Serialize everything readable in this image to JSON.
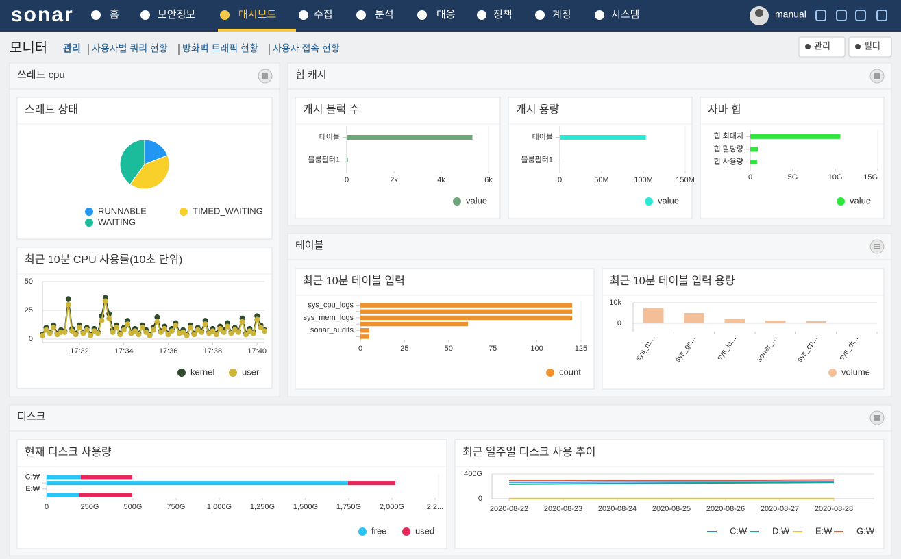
{
  "nav": {
    "logo": "sonar",
    "menu": [
      "홈",
      "보안정보",
      "대시보드",
      "수집",
      "분석",
      "대응",
      "정책",
      "계정",
      "시스템"
    ],
    "active": 2,
    "user": "manual"
  },
  "header": {
    "title": "모니터",
    "links": [
      "관리",
      "사용자별 쿼리 현황",
      "방화벽 트래픽 현황",
      "사용자 접속 현황"
    ],
    "buttons": [
      "관리",
      "필터"
    ]
  },
  "panels": [
    {
      "title": "쓰레드 cpu",
      "widgets": [
        {
          "title": "스레드 상태",
          "type": "pie",
          "categories": [
            "RUNNABLE",
            "TIMED_WAITING",
            "WAITING"
          ],
          "values": [
            19,
            41,
            40
          ],
          "colors": [
            "#2196f3",
            "#f9cf2a",
            "#1abc9c"
          ]
        },
        {
          "title": "최근 10분 CPU 사용률(10초 단위)",
          "type": "line",
          "markers": true,
          "grid": true,
          "categories": [
            null,
            null,
            null,
            null,
            null,
            null,
            null,
            null,
            null,
            null,
            "17:32",
            null,
            null,
            null,
            null,
            null,
            null,
            null,
            null,
            null,
            null,
            null,
            "17:34",
            null,
            null,
            null,
            null,
            null,
            null,
            null,
            null,
            null,
            null,
            null,
            "17:36",
            null,
            null,
            null,
            null,
            null,
            null,
            null,
            null,
            null,
            null,
            null,
            "17:38",
            null,
            null,
            null,
            null,
            null,
            null,
            null,
            null,
            null,
            null,
            null,
            "17:40",
            null,
            null
          ],
          "ylim": [
            -3,
            50
          ],
          "yticks": [
            0,
            25,
            50
          ],
          "series": [
            {
              "name": "kernel",
              "color": "#2f4a2c",
              "values": [
                4,
                10,
                6,
                12,
                5,
                8,
                7,
                35,
                9,
                5,
                12,
                6,
                10,
                4,
                9,
                6,
                20,
                36,
                22,
                8,
                12,
                5,
                10,
                16,
                6,
                9,
                5,
                12,
                8,
                4,
                10,
                19,
                7,
                11,
                5,
                9,
                14,
                6,
                8,
                4,
                12,
                5,
                10,
                7,
                16,
                6,
                9,
                5,
                11,
                8,
                14,
                6,
                10,
                7,
                18,
                5,
                9,
                6,
                20,
                12,
                8
              ]
            },
            {
              "name": "user",
              "color": "#cdb53a",
              "values": [
                3,
                8,
                5,
                10,
                4,
                6,
                6,
                30,
                7,
                4,
                10,
                5,
                8,
                3,
                7,
                5,
                16,
                33,
                18,
                6,
                10,
                4,
                8,
                13,
                5,
                7,
                4,
                10,
                6,
                3,
                8,
                15,
                6,
                9,
                4,
                7,
                12,
                5,
                6,
                3,
                10,
                4,
                8,
                6,
                13,
                5,
                7,
                4,
                9,
                6,
                11,
                5,
                8,
                6,
                15,
                4,
                7,
                5,
                17,
                10,
                7
              ]
            }
          ]
        }
      ]
    },
    {
      "title": "힙 캐시",
      "widgets": [
        {
          "title": "캐시 블럭 수",
          "type": "hbar",
          "categories": [
            "테이블",
            "블룸필터1"
          ],
          "series": [
            {
              "name": "value",
              "color": "#6fa77a",
              "values": [
                5320,
                50
              ]
            }
          ],
          "xlim": [
            0,
            6000
          ],
          "xticks": [
            0,
            {
              "value": 2000,
              "label": "2k"
            },
            {
              "value": 4000,
              "label": "4k"
            },
            {
              "value": 6000,
              "label": "6k"
            }
          ]
        },
        {
          "title": "캐시 용량",
          "type": "hbar",
          "categories": [
            "테이블",
            "블룸필터1"
          ],
          "series": [
            {
              "name": "value",
              "color": "#2ee8d6",
              "values": [
                103,
                0
              ]
            }
          ],
          "xlim": [
            0,
            150
          ],
          "xticks": [
            0,
            {
              "value": 50,
              "label": "50M"
            },
            {
              "value": 100,
              "label": "100M"
            },
            {
              "value": 150,
              "label": "150M"
            }
          ]
        },
        {
          "title": "자바 힙",
          "type": "hbar",
          "categories": [
            "힙 최대치",
            "힙 할당량",
            "힙 사용량"
          ],
          "series": [
            {
              "name": "value",
              "color": "#2ee83c",
              "values": [
                10.6,
                0.9,
                0.8
              ]
            }
          ],
          "xlim": [
            0,
            15
          ],
          "xticks": [
            0,
            {
              "value": 5,
              "label": "5G"
            },
            {
              "value": 10,
              "label": "10G"
            },
            {
              "value": 15,
              "label": "15G"
            }
          ]
        }
      ]
    },
    {
      "title": "테이블",
      "widgets": [
        {
          "title": "최근 10분 테이블 입력",
          "type": "hbar",
          "categories": [
            "sys_cpu_logs",
            null,
            "sys_mem_logs",
            null,
            "sonar_audits",
            null
          ],
          "series": [
            {
              "name": "count",
              "color": "#f0922b",
              "values": [
                120,
                120,
                120,
                61,
                5,
                5
              ]
            }
          ],
          "xlim": [
            0,
            125
          ],
          "xticks": [
            0,
            25,
            50,
            75,
            100,
            125
          ]
        },
        {
          "title": "최근 10분 테이블 입력 용량",
          "type": "vbar",
          "grid": true,
          "categories": [
            "sys_m...",
            "sys_gc...",
            "sys_lo...",
            "sonar_...",
            "sys_cp...",
            "sys_di..."
          ],
          "series": [
            {
              "name": "volume",
              "color": "#f2bf98",
              "values": [
                7300,
                5000,
                2000,
                1300,
                1000,
                0
              ]
            }
          ],
          "ylim": [
            -4000,
            10000
          ],
          "yticks": [
            0,
            {
              "value": 10000,
              "label": "10k"
            }
          ]
        }
      ]
    },
    {
      "title": "디스크",
      "widgets": [
        {
          "title": "현재 디스크 사용량",
          "type": "hbar",
          "categories": [
            "C:₩",
            null,
            "E:₩",
            null
          ],
          "series": [
            {
              "name": "free",
              "color": "#29c5f6",
              "values": [
                198,
                1746,
                0,
                187
              ]
            },
            {
              "name": "used",
              "color": "#e8275a",
              "values": [
                298,
                274,
                0,
                309
              ]
            }
          ],
          "xlim": [
            0,
            2270
          ],
          "xticks": [
            0,
            {
              "value": 250,
              "label": "250G"
            },
            {
              "value": 500,
              "label": "500G"
            },
            {
              "value": 750,
              "label": "750G"
            },
            {
              "value": 1000,
              "label": "1,000G"
            },
            {
              "value": 1250,
              "label": "1,250G"
            },
            {
              "value": 1500,
              "label": "1,500G"
            },
            {
              "value": 1750,
              "label": "1,750G"
            },
            {
              "value": 2000,
              "label": "2,000G"
            },
            {
              "value": 2250,
              "label": "2,2..."
            }
          ]
        },
        {
          "title": "최근 일주일 디스크 사용 추이",
          "type": "line",
          "markers": false,
          "grid": true,
          "x": [
            "2020-08-22",
            "2020-08-23",
            "2020-08-24",
            "2020-08-25",
            "2020-08-26",
            "2020-08-27",
            "2020-08-28"
          ],
          "xlim": [
            "2020-08-22",
            "2020-08-28"
          ],
          "xticks": [
            "2020-08-22",
            "2020-08-23",
            "2020-08-24",
            "2020-08-25",
            "2020-08-26",
            "2020-08-27",
            "2020-08-28"
          ],
          "ylim": [
            0,
            400
          ],
          "yticks": [
            0,
            {
              "value": 400,
              "label": "400G"
            }
          ],
          "series": [
            {
              "name": "C:₩",
              "color": "#2d7fe0",
              "values": [
                270,
                270,
                272,
                273,
                273,
                275,
                276
              ]
            },
            {
              "name": "D:₩",
              "color": "#14a88e",
              "values": [
                235,
                240,
                245,
                250,
                255,
                260,
                265
              ]
            },
            {
              "name": "E:₩",
              "color": "#f2c12e",
              "values": [
                3,
                3,
                3,
                3,
                3,
                3,
                3
              ]
            },
            {
              "name": "G:₩",
              "color": "#e5562c",
              "values": [
                300,
                300,
                298,
                298,
                298,
                302,
                305
              ]
            }
          ]
        }
      ]
    }
  ]
}
